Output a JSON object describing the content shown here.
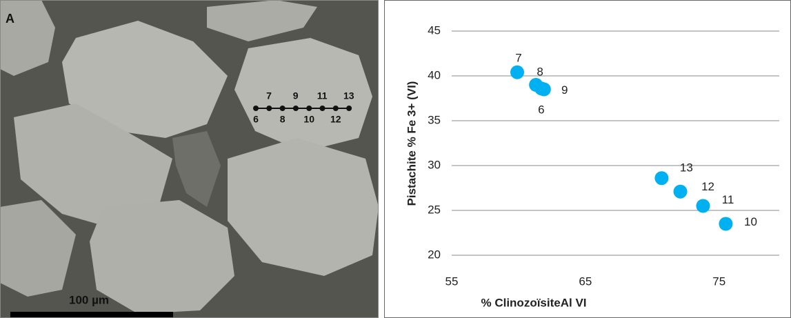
{
  "micrograph": {
    "panel_label": "A",
    "scale_bar": "100 µm",
    "transect_labels_top": [
      "7",
      "9",
      "11",
      "13"
    ],
    "transect_labels_bottom": [
      "6",
      "8",
      "10",
      "12"
    ]
  },
  "chart_data": {
    "type": "scatter",
    "x_label": "% ClinozoïsiteAl VI",
    "y_label": "Pistachite % Fe 3+ (VI)",
    "x": [
      61.7,
      59.9,
      61.3,
      61.9,
      75.5,
      73.8,
      72.1,
      70.7
    ],
    "values": [
      38.6,
      40.4,
      39.0,
      38.5,
      23.5,
      25.5,
      27.1,
      28.6
    ],
    "point_labels": [
      "6",
      "7",
      "8",
      "9",
      "10",
      "11",
      "12",
      "13"
    ],
    "color": "#00b0f0",
    "xlim": [
      55,
      79.5
    ],
    "xticks": [
      55,
      65,
      75
    ],
    "ylim": [
      20,
      45
    ],
    "yticks": [
      20,
      25,
      30,
      35,
      40,
      45
    ],
    "grid": true
  }
}
